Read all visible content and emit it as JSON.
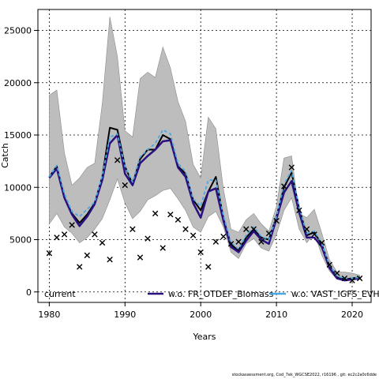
{
  "chart_data": {
    "type": "line",
    "title": "",
    "xlabel": "Years",
    "ylabel": "Catch",
    "xlim": [
      1978.5,
      2022.5
    ],
    "ylim": [
      -1000,
      27000
    ],
    "x_ticks": [
      1980,
      1990,
      2000,
      2010,
      2020
    ],
    "y_ticks": [
      0,
      5000,
      10000,
      15000,
      20000,
      25000
    ],
    "grid": true,
    "legend_placement": "bottom",
    "years": [
      1980,
      1981,
      1982,
      1983,
      1984,
      1985,
      1986,
      1987,
      1988,
      1989,
      1990,
      1991,
      1992,
      1993,
      1994,
      1995,
      1996,
      1997,
      1998,
      1999,
      2000,
      2001,
      2002,
      2003,
      2004,
      2005,
      2006,
      2007,
      2008,
      2009,
      2010,
      2011,
      2012,
      2013,
      2014,
      2015,
      2016,
      2017,
      2018,
      2019,
      2020,
      2021
    ],
    "band": {
      "lower": [
        6500,
        7500,
        6200,
        5600,
        4700,
        5200,
        6000,
        7000,
        8800,
        10800,
        8500,
        7000,
        7700,
        8800,
        9200,
        9700,
        9900,
        8900,
        7800,
        6200,
        5700,
        7200,
        7700,
        6200,
        3800,
        3200,
        4600,
        5100,
        4200,
        3900,
        5500,
        7800,
        9000,
        6000,
        4700,
        5600,
        3500,
        2000,
        1200,
        1300,
        1200,
        1200
      ],
      "upper": [
        18800,
        19300,
        13300,
        10200,
        10900,
        11900,
        12300,
        18000,
        26300,
        22500,
        15400,
        14800,
        20400,
        21000,
        20500,
        23400,
        21400,
        18200,
        16300,
        12200,
        10900,
        16700,
        15600,
        9800,
        6000,
        5700,
        6900,
        7500,
        6500,
        5800,
        8200,
        12800,
        13000,
        7500,
        7100,
        7900,
        5600,
        3100,
        1900,
        1900,
        1800,
        1600
      ]
    },
    "series": [
      {
        "name": "current",
        "color": "#000000",
        "values": [
          11000,
          12000,
          9000,
          7500,
          6600,
          7400,
          8500,
          11000,
          15700,
          15500,
          12000,
          10300,
          12700,
          13600,
          13600,
          15000,
          14600,
          12000,
          11300,
          8800,
          7800,
          9600,
          11000,
          7000,
          4500,
          4000,
          5200,
          6000,
          5200,
          5000,
          7200,
          10000,
          11400,
          8000,
          5400,
          5700,
          4500,
          2500,
          1400,
          1200,
          1300,
          1400
        ]
      },
      {
        "name": "w.o. FR_OTDEF_Biomass",
        "color": "#2a0f80",
        "values": [
          10900,
          11800,
          9000,
          7400,
          6300,
          7200,
          8400,
          10700,
          14200,
          15000,
          11300,
          10200,
          12300,
          13000,
          13600,
          14400,
          14500,
          11900,
          11000,
          8500,
          7100,
          9600,
          9900,
          6800,
          4300,
          3800,
          4900,
          5800,
          5000,
          4600,
          7000,
          9500,
          10600,
          7600,
          5200,
          5200,
          4300,
          2300,
          1300,
          1100,
          1200,
          1300
        ]
      },
      {
        "name": "w.o. VAST_IGFS_EVHOE",
        "color": "#4aa8e0",
        "values": [
          11000,
          12100,
          9400,
          7700,
          7200,
          7900,
          8600,
          11100,
          14800,
          15100,
          12000,
          10500,
          12900,
          13600,
          14200,
          15500,
          15100,
          12300,
          11500,
          8900,
          8200,
          10700,
          10700,
          7300,
          4700,
          4100,
          5400,
          6200,
          5300,
          5000,
          7200,
          10300,
          11600,
          8100,
          5600,
          5800,
          4600,
          2600,
          1500,
          1300,
          1300,
          1400
        ]
      }
    ],
    "observed": {
      "marker": "x",
      "years": [
        1980,
        1981,
        1982,
        1983,
        1984,
        1985,
        1986,
        1987,
        1988,
        1989,
        1990,
        1991,
        1992,
        1993,
        1994,
        1995,
        1996,
        1997,
        1998,
        1999,
        2000,
        2001,
        2002,
        2003,
        2004,
        2005,
        2006,
        2007,
        2008,
        2009,
        2010,
        2011,
        2012,
        2013,
        2014,
        2015,
        2016,
        2017,
        2018,
        2019,
        2020,
        2021
      ],
      "values": [
        3700,
        5200,
        5500,
        6400,
        2400,
        3500,
        5500,
        4700,
        3100,
        12600,
        10200,
        6000,
        3300,
        5100,
        7500,
        4200,
        7400,
        6900,
        6000,
        5400,
        3800,
        2400,
        4800,
        5300,
        4600,
        4800,
        6000,
        6000,
        4800,
        5600,
        6800,
        10100,
        11900,
        7800,
        6000,
        5500,
        4700,
        2600,
        1800,
        1300,
        1100,
        1300
      ]
    }
  },
  "footer": {
    "text": "stockassessment.org, Cod_7ek_WGCSE2022, r16196 , git: ec2c2a0c6dde"
  }
}
